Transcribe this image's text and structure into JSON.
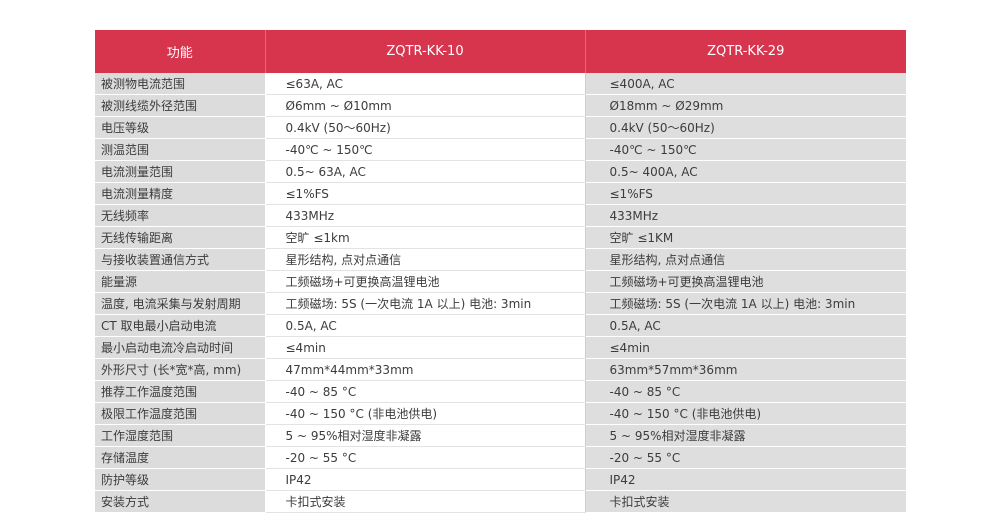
{
  "header": {
    "col1": "功能",
    "col2": "ZQTR-KK-10",
    "col3": "ZQTR-KK-29"
  },
  "rows": [
    {
      "label": "被测物电流范围",
      "a": "≤63A, AC",
      "b": "≤400A, AC"
    },
    {
      "label": "被测线缆外径范围",
      "a": "Ø6mm ~ Ø10mm",
      "b": "Ø18mm ~ Ø29mm"
    },
    {
      "label": "电压等级",
      "a": "0.4kV (50～60Hz)",
      "b": "0.4kV (50～60Hz)"
    },
    {
      "label": "测温范围",
      "a": "-40℃ ~ 150℃",
      "b": "-40℃ ~ 150℃"
    },
    {
      "label": "电流测量范围",
      "a": "0.5~ 63A, AC",
      "b": "0.5~ 400A, AC"
    },
    {
      "label": "电流测量精度",
      "a": "≤1%FS",
      "b": "≤1%FS"
    },
    {
      "label": "无线频率",
      "a": "433MHz",
      "b": "433MHz"
    },
    {
      "label": "无线传输距离",
      "a": "空旷 ≤1km",
      "b": "空旷 ≤1KM"
    },
    {
      "label": "与接收装置通信方式",
      "a": "星形结构, 点对点通信",
      "b": "星形结构, 点对点通信"
    },
    {
      "label": "能量源",
      "a": "工频磁场+可更换高温锂电池",
      "b": "工频磁场+可更换高温锂电池"
    },
    {
      "label": "温度, 电流采集与发射周期",
      "a": "工频磁场: 5S (一次电流 1A 以上)    电池: 3min",
      "b": "工频磁场: 5S (一次电流 1A 以上)    电池: 3min"
    },
    {
      "label": "CT 取电最小启动电流",
      "a": "0.5A, AC",
      "b": "0.5A, AC"
    },
    {
      "label": "最小启动电流冷启动时间",
      "a": "≤4min",
      "b": "≤4min"
    },
    {
      "label": "外形尺寸 (长*宽*高, mm)",
      "a": "47mm*44mm*33mm",
      "b": "63mm*57mm*36mm"
    },
    {
      "label": "推荐工作温度范围",
      "a": "-40 ~ 85 °C",
      "b": "-40 ~ 85 °C"
    },
    {
      "label": "极限工作温度范围",
      "a": "-40 ~ 150 °C (非电池供电)",
      "b": "-40 ~ 150 °C (非电池供电)"
    },
    {
      "label": "工作湿度范围",
      "a": "5 ~ 95%相对湿度非凝露",
      "b": "5 ~ 95%相对湿度非凝露"
    },
    {
      "label": "存储温度",
      "a": "-20  ~ 55 °C",
      "b": "-20  ~ 55 °C"
    },
    {
      "label": "防护等级",
      "a": "IP42",
      "b": "IP42"
    },
    {
      "label": "安装方式",
      "a": "卡扣式安装",
      "b": "卡扣式安装"
    }
  ],
  "colors": {
    "header_bg": "#d7344e",
    "label_bg": "#dcdcdc",
    "col3_bg": "#dedede"
  }
}
